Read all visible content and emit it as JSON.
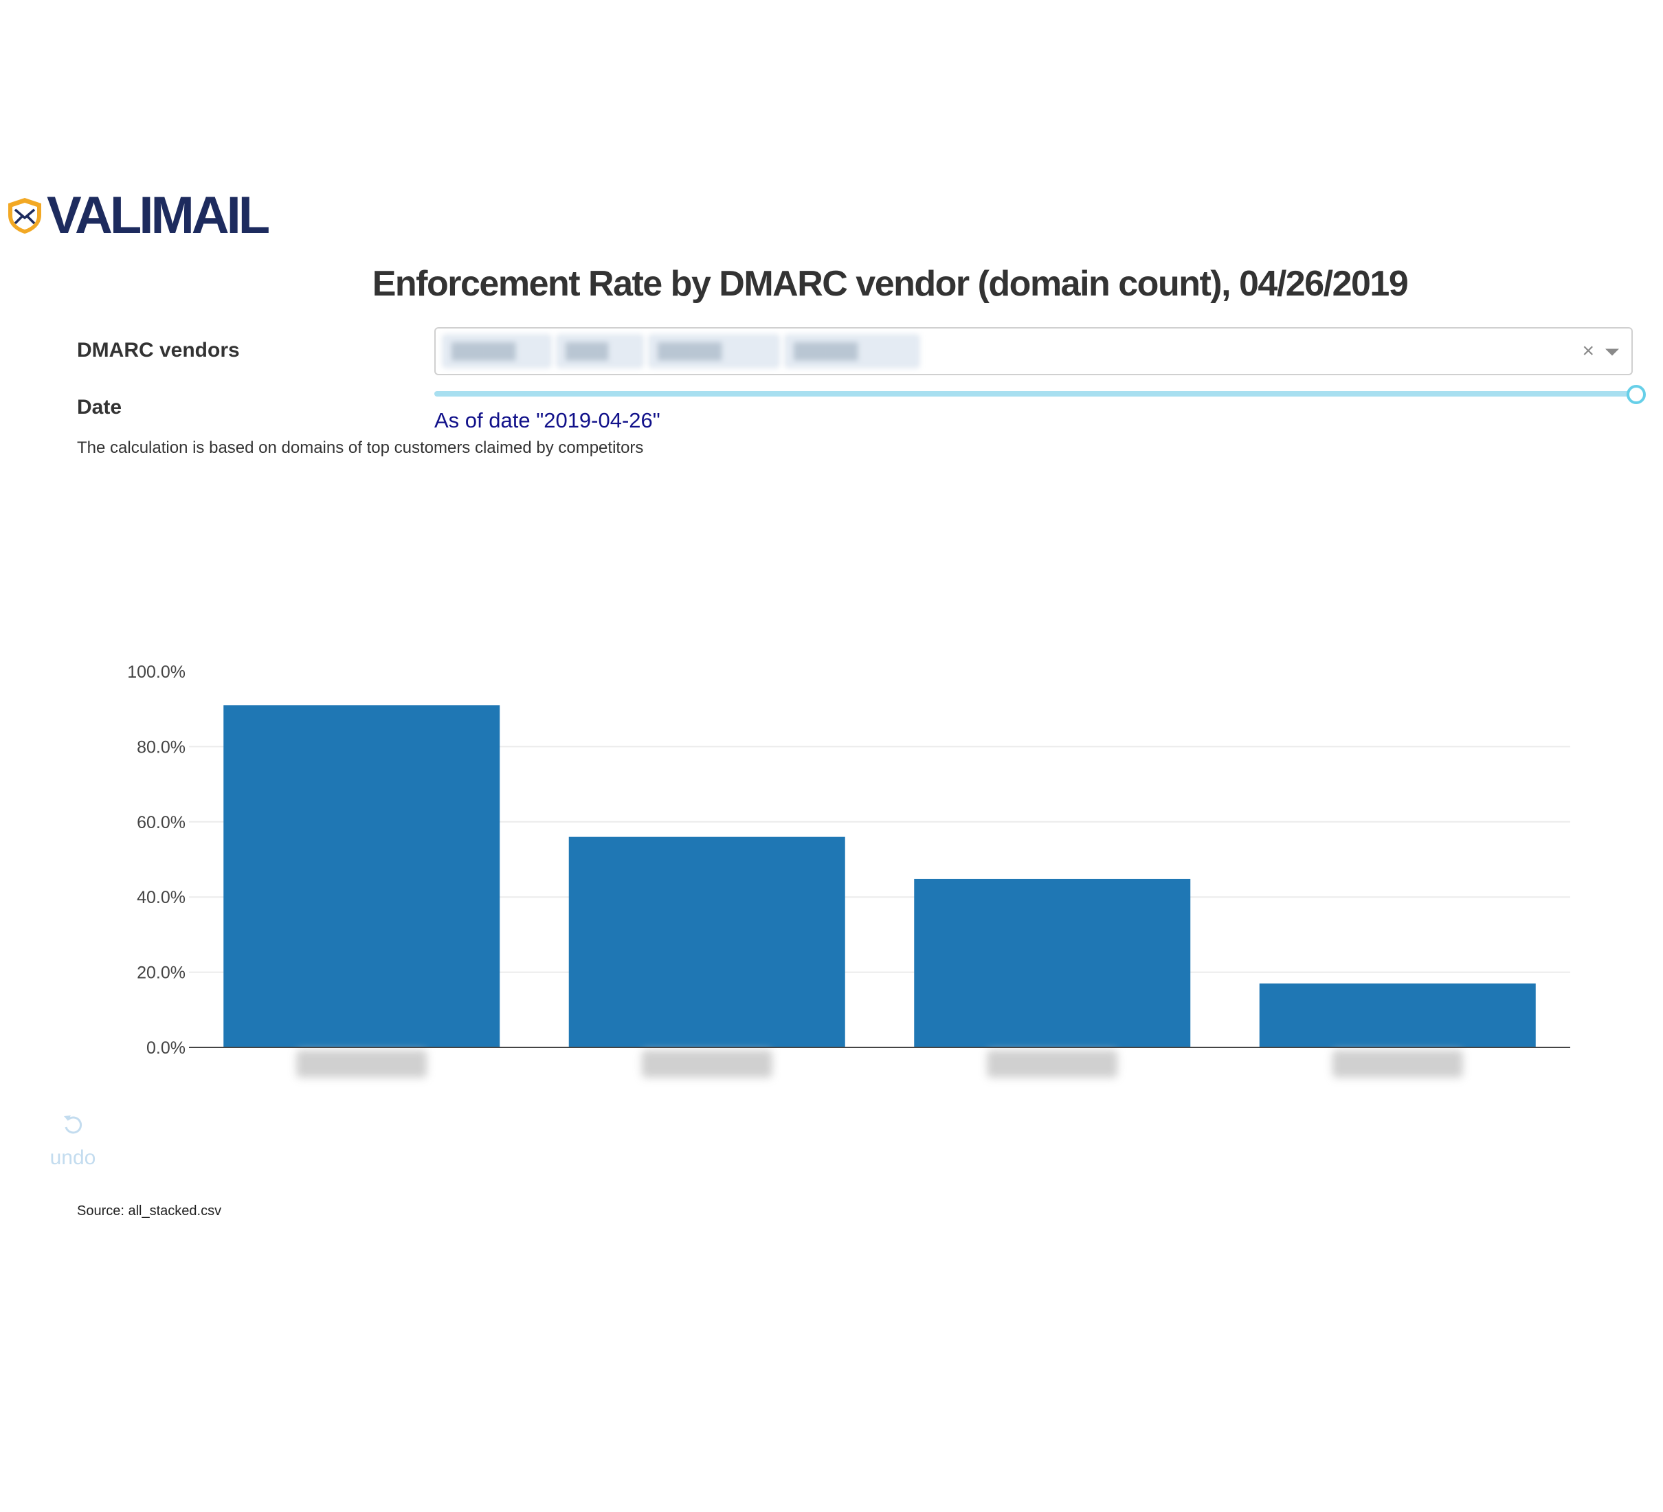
{
  "brand": {
    "name": "VALIMAIL",
    "color": "#1d2b5e",
    "shield_color": "#f2a824"
  },
  "page": {
    "title": "Enforcement Rate by DMARC vendor (domain count), 04/26/2019"
  },
  "filters": {
    "vendors_label": "DMARC vendors",
    "vendor_chips": [
      "██████",
      "████",
      "██████",
      "██████"
    ],
    "clear_icon": "×",
    "date_label": "Date",
    "as_of_text": "As of date \"2019-04-26\""
  },
  "note": "The calculation is based on domains of top customers claimed by competitors",
  "chart_data": {
    "type": "bar",
    "categories": [
      "",
      "",
      "",
      ""
    ],
    "values": [
      91.0,
      56.0,
      44.8,
      17.0
    ],
    "yticks": [
      "0.0%",
      "20.0%",
      "40.0%",
      "60.0%",
      "80.0%",
      "100.0%"
    ],
    "ylim": [
      0,
      100
    ],
    "grid": true,
    "bar_color": "#1f77b4",
    "title": "",
    "xlabel": "",
    "ylabel": ""
  },
  "undo": {
    "label": "undo",
    "icon": "undo-icon"
  },
  "source": "Source: all_stacked.csv"
}
